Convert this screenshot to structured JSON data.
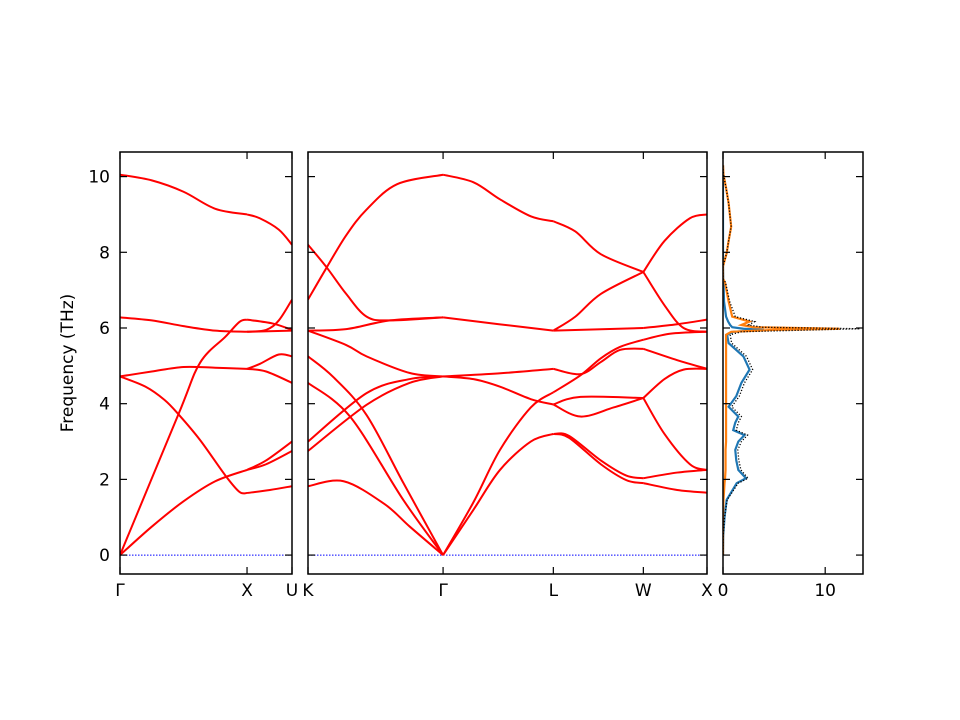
{
  "chart_data": {
    "type": "line",
    "ylabel": "Frequency (THz)",
    "ylim": [
      -0.5,
      10.65
    ],
    "yticks": [
      0,
      2,
      4,
      6,
      8,
      10
    ],
    "band_color": "#ff0000",
    "zero_line_color": "#0000ff",
    "panels": [
      {
        "kind": "band",
        "xlim": [
          0,
          1.354
        ],
        "xticks": [
          {
            "label": "Γ",
            "k": 0
          },
          {
            "label": "X",
            "k": 1.0
          },
          {
            "label": "U",
            "k": 1.354
          }
        ],
        "bands": [
          [
            [
              0,
              0
            ],
            [
              0.25,
              0.75
            ],
            [
              0.5,
              1.42
            ],
            [
              0.75,
              1.95
            ],
            [
              1,
              2.25
            ]
          ],
          [
            [
              0,
              0
            ],
            [
              0.46,
              3.72
            ],
            [
              0.63,
              5.08
            ],
            [
              0.83,
              5.77
            ],
            [
              0.94,
              6.16
            ],
            [
              1,
              6.22
            ]
          ],
          [
            [
              0,
              4.72
            ],
            [
              0.2,
              4.45
            ],
            [
              0.35,
              4.1
            ],
            [
              0.46,
              3.72
            ],
            [
              0.63,
              3.04
            ],
            [
              0.83,
              2.1
            ],
            [
              0.94,
              1.67
            ],
            [
              1,
              1.64
            ]
          ],
          [
            [
              0,
              4.72
            ],
            [
              0.25,
              4.85
            ],
            [
              0.5,
              4.97
            ],
            [
              0.75,
              4.95
            ],
            [
              1,
              4.92
            ]
          ],
          [
            [
              0,
              6.28
            ],
            [
              0.25,
              6.2
            ],
            [
              0.5,
              6.05
            ],
            [
              0.75,
              5.93
            ],
            [
              1,
              5.9
            ]
          ],
          [
            [
              0,
              10.05
            ],
            [
              0.25,
              9.9
            ],
            [
              0.5,
              9.6
            ],
            [
              0.75,
              9.15
            ],
            [
              1,
              9.0
            ]
          ],
          [
            [
              1,
              1.64
            ],
            [
              1.18,
              1.72
            ],
            [
              1.354,
              1.82
            ]
          ],
          [
            [
              1,
              2.25
            ],
            [
              1.15,
              2.4
            ],
            [
              1.354,
              2.75
            ]
          ],
          [
            [
              1,
              2.25
            ],
            [
              1.15,
              2.5
            ],
            [
              1.354,
              3.0
            ]
          ],
          [
            [
              1,
              4.92
            ],
            [
              1.15,
              4.85
            ],
            [
              1.354,
              4.55
            ]
          ],
          [
            [
              1,
              4.92
            ],
            [
              1.1,
              5.05
            ],
            [
              1.25,
              5.3
            ],
            [
              1.354,
              5.25
            ]
          ],
          [
            [
              1,
              5.9
            ],
            [
              1.354,
              5.93
            ]
          ],
          [
            [
              1,
              6.22
            ],
            [
              1.2,
              6.12
            ],
            [
              1.354,
              5.95
            ]
          ],
          [
            [
              1,
              5.9
            ],
            [
              1.15,
              5.95
            ],
            [
              1.25,
              6.2
            ],
            [
              1.354,
              6.75
            ]
          ],
          [
            [
              1,
              9.0
            ],
            [
              1.1,
              8.9
            ],
            [
              1.25,
              8.6
            ],
            [
              1.354,
              8.2
            ]
          ]
        ]
      },
      {
        "kind": "band",
        "xlim": [
          0,
          3.134
        ],
        "xticks": [
          {
            "label": "K",
            "k": 0
          },
          {
            "label": "Γ",
            "k": 1.061
          },
          {
            "label": "L",
            "k": 1.927
          },
          {
            "label": "W",
            "k": 2.634
          },
          {
            "label": "X",
            "k": 3.134
          }
        ],
        "bands": [
          [
            [
              0,
              6.75
            ],
            [
              0.147,
              7.6
            ],
            [
              0.3,
              8.45
            ],
            [
              0.46,
              9.13
            ],
            [
              0.7,
              9.8
            ],
            [
              1.061,
              10.05
            ]
          ],
          [
            [
              0,
              8.2
            ],
            [
              0.147,
              7.6
            ],
            [
              0.3,
              6.9
            ],
            [
              0.46,
              6.3
            ],
            [
              0.644,
              6.2
            ],
            [
              1.061,
              6.28
            ]
          ],
          [
            [
              0,
              5.93
            ],
            [
              0.3,
              5.97
            ],
            [
              0.644,
              6.2
            ],
            [
              1.061,
              6.28
            ]
          ],
          [
            [
              0,
              5.93
            ],
            [
              0.3,
              5.55
            ],
            [
              0.46,
              5.25
            ],
            [
              0.8,
              4.81
            ],
            [
              1.061,
              4.72
            ]
          ],
          [
            [
              0,
              5.25
            ],
            [
              0.2,
              4.7
            ],
            [
              0.46,
              3.7
            ],
            [
              0.75,
              1.9
            ],
            [
              1.061,
              0
            ]
          ],
          [
            [
              0,
              4.55
            ],
            [
              0.33,
              3.66
            ],
            [
              0.75,
              1.45
            ],
            [
              1.061,
              0
            ]
          ],
          [
            [
              0,
              3.0
            ],
            [
              0.46,
              4.28
            ],
            [
              0.8,
              4.65
            ],
            [
              1.061,
              4.72
            ]
          ],
          [
            [
              0,
              2.75
            ],
            [
              0.46,
              3.97
            ],
            [
              0.8,
              4.55
            ],
            [
              1.061,
              4.72
            ]
          ],
          [
            [
              0,
              1.82
            ],
            [
              0.28,
              1.95
            ],
            [
              0.6,
              1.35
            ],
            [
              0.8,
              0.75
            ],
            [
              1.061,
              0
            ]
          ],
          [
            [
              1.061,
              10.05
            ],
            [
              1.3,
              9.85
            ],
            [
              1.508,
              9.4
            ],
            [
              1.75,
              8.95
            ],
            [
              1.927,
              8.82
            ]
          ],
          [
            [
              1.061,
              6.28
            ],
            [
              1.5,
              6.1
            ],
            [
              1.927,
              5.93
            ]
          ],
          [
            [
              1.061,
              4.72
            ],
            [
              1.5,
              4.8
            ],
            [
              1.927,
              4.92
            ]
          ],
          [
            [
              1.061,
              4.72
            ],
            [
              1.3,
              4.65
            ],
            [
              1.508,
              4.45
            ],
            [
              1.75,
              4.12
            ],
            [
              1.927,
              3.98
            ]
          ],
          [
            [
              1.061,
              0
            ],
            [
              1.3,
              1.4
            ],
            [
              1.508,
              2.78
            ],
            [
              1.75,
              3.9
            ],
            [
              1.927,
              4.3
            ]
          ],
          [
            [
              1.061,
              0
            ],
            [
              1.3,
              1.2
            ],
            [
              1.508,
              2.25
            ],
            [
              1.75,
              3.0
            ],
            [
              1.927,
              3.2
            ]
          ],
          [
            [
              1.927,
              8.82
            ],
            [
              2.1,
              8.55
            ],
            [
              2.3,
              7.95
            ],
            [
              2.634,
              7.48
            ]
          ],
          [
            [
              1.927,
              5.93
            ],
            [
              2.1,
              6.3
            ],
            [
              2.3,
              6.9
            ],
            [
              2.634,
              7.48
            ]
          ],
          [
            [
              1.927,
              5.93
            ],
            [
              2.634,
              6.0
            ]
          ],
          [
            [
              1.927,
              4.92
            ],
            [
              2.14,
              4.78
            ],
            [
              2.3,
              5.1
            ],
            [
              2.45,
              5.42
            ],
            [
              2.634,
              5.45
            ]
          ],
          [
            [
              1.927,
              4.3
            ],
            [
              2.14,
              4.75
            ],
            [
              2.3,
              5.2
            ],
            [
              2.45,
              5.5
            ],
            [
              2.634,
              5.69
            ]
          ],
          [
            [
              1.927,
              3.98
            ],
            [
              2.14,
              4.18
            ],
            [
              2.634,
              4.15
            ]
          ],
          [
            [
              1.927,
              3.98
            ],
            [
              2.14,
              3.66
            ],
            [
              2.4,
              3.9
            ],
            [
              2.634,
              4.15
            ]
          ],
          [
            [
              1.927,
              3.2
            ],
            [
              2.05,
              3.15
            ],
            [
              2.3,
              2.5
            ],
            [
              2.5,
              2.1
            ],
            [
              2.634,
              2.03
            ]
          ],
          [
            [
              1.927,
              3.2
            ],
            [
              2.05,
              3.1
            ],
            [
              2.3,
              2.4
            ],
            [
              2.5,
              1.98
            ],
            [
              2.634,
              1.9
            ]
          ],
          [
            [
              2.634,
              7.48
            ],
            [
              2.8,
              8.3
            ],
            [
              3.0,
              8.9
            ],
            [
              3.134,
              9.0
            ]
          ],
          [
            [
              2.634,
              7.48
            ],
            [
              2.8,
              6.6
            ],
            [
              2.95,
              6.0
            ],
            [
              3.134,
              5.9
            ]
          ],
          [
            [
              2.634,
              6.0
            ],
            [
              2.9,
              6.1
            ],
            [
              3.134,
              6.22
            ]
          ],
          [
            [
              2.634,
              5.69
            ],
            [
              2.85,
              5.85
            ],
            [
              3.134,
              5.9
            ]
          ],
          [
            [
              2.634,
              5.45
            ],
            [
              2.9,
              5.15
            ],
            [
              3.134,
              4.92
            ]
          ],
          [
            [
              2.634,
              4.15
            ],
            [
              2.8,
              4.65
            ],
            [
              2.95,
              4.9
            ],
            [
              3.134,
              4.92
            ]
          ],
          [
            [
              2.634,
              4.15
            ],
            [
              2.8,
              3.2
            ],
            [
              3.0,
              2.4
            ],
            [
              3.134,
              2.25
            ]
          ],
          [
            [
              2.634,
              2.03
            ],
            [
              2.9,
              2.18
            ],
            [
              3.134,
              2.25
            ]
          ],
          [
            [
              2.634,
              1.9
            ],
            [
              2.9,
              1.72
            ],
            [
              3.134,
              1.65
            ]
          ]
        ]
      },
      {
        "kind": "dos",
        "xlim": [
          0,
          13.7
        ],
        "xticks": [
          {
            "label": "0",
            "v": 0
          },
          {
            "label": "10",
            "v": 10
          }
        ],
        "frequency": [
          0,
          0.5,
          1,
          1.46,
          1.9,
          2.03,
          2.25,
          2.5,
          2.78,
          3.0,
          3.17,
          3.3,
          3.5,
          3.66,
          3.92,
          4.2,
          4.55,
          4.9,
          5.25,
          5.6,
          5.82,
          5.9,
          5.95,
          5.98,
          6.02,
          6.08,
          6.17,
          6.3,
          6.7,
          7.2,
          7.3,
          7.63,
          7.98,
          8.3,
          8.68,
          9.3,
          9.7,
          10.05,
          10.3
        ],
        "series": [
          {
            "color": "#1f77b4",
            "values": [
              0,
              0.02,
              0.15,
              0.36,
              1.34,
              2.25,
              1.5,
              1.3,
              1.2,
              1.5,
              2.1,
              1.0,
              1.2,
              1.5,
              0.55,
              1.3,
              1.8,
              2.6,
              2.0,
              0.55,
              0.4,
              1.0,
              4.0,
              2.0,
              0.9,
              0.7,
              0.5,
              0.3,
              0.1,
              0.05,
              0.02,
              0,
              0,
              0,
              0,
              0,
              0,
              0,
              0
            ]
          },
          {
            "color": "#ff7f0e",
            "values": [
              0,
              0,
              0,
              0.05,
              0.15,
              0.2,
              0.25,
              0.25,
              0.25,
              0.3,
              0.3,
              0.3,
              0.3,
              0.3,
              0.3,
              0.3,
              0.3,
              0.3,
              0.3,
              0.3,
              0.3,
              0.8,
              5.0,
              11.4,
              3.0,
              1.8,
              2.6,
              0.9,
              0.55,
              0.2,
              0,
              0,
              0.36,
              0.55,
              0.8,
              0.55,
              0.3,
              0.05,
              0
            ]
          }
        ],
        "total_color": "#000000",
        "total_style": "dotted"
      }
    ]
  }
}
